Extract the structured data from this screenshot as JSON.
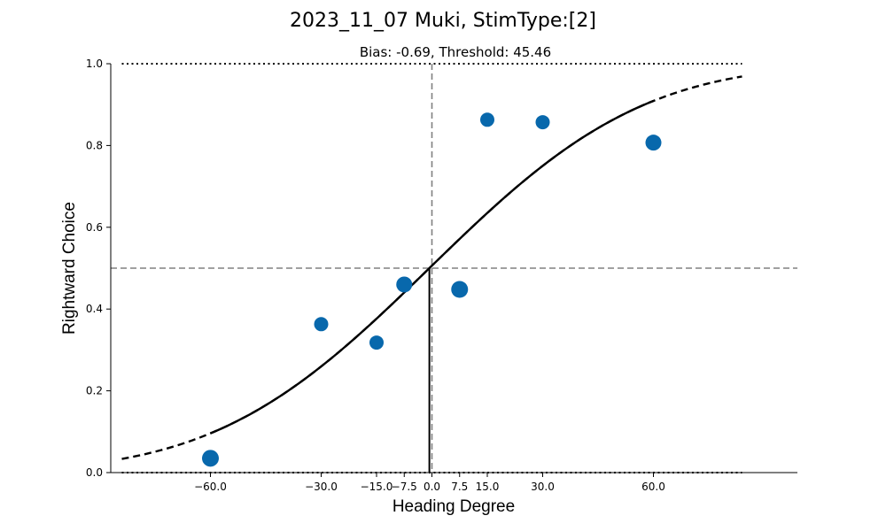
{
  "chart_data": {
    "type": "scatter",
    "title": "2023_11_07 Muki, StimType:[2]",
    "subtitle": "Bias: -0.69, Threshold: 45.46",
    "xlabel": "Heading Degree",
    "ylabel": "Rightward Choice",
    "xlim": [
      -87,
      99
    ],
    "ylim": [
      0,
      1
    ],
    "x_ticks": [
      -60.0,
      -30.0,
      -15.0,
      -7.5,
      0.0,
      7.5,
      15.0,
      30.0,
      60.0
    ],
    "x_tick_labels": [
      "−60.0",
      "−30.0",
      "−15.0",
      "−7.5",
      "0.0",
      "7.5",
      "15.0",
      "30.0",
      "60.0"
    ],
    "y_ticks": [
      0.0,
      0.2,
      0.4,
      0.6,
      0.8,
      1.0
    ],
    "y_tick_labels": [
      "0.0",
      "0.2",
      "0.4",
      "0.6",
      "0.8",
      "1.0"
    ],
    "points": {
      "x": [
        -60.0,
        -30.0,
        -15.0,
        -7.5,
        7.5,
        15.0,
        30.0,
        60.0
      ],
      "y": [
        0.035,
        0.363,
        0.318,
        0.46,
        0.448,
        0.863,
        0.857,
        0.807
      ],
      "color": "#0868ac"
    },
    "fit": {
      "model": "cumulative_gaussian",
      "mu": -0.69,
      "sigma": 45.46,
      "solid_range": [
        -60,
        60
      ],
      "dashed_range": [
        -84,
        84
      ],
      "color": "#000000"
    },
    "reference_lines": {
      "horizontal_dashed_y": 0.5,
      "vertical_dashed_x": 0.0,
      "dotted_y": [
        0.0,
        1.0
      ],
      "dotted_x_range": [
        -84,
        84
      ],
      "bias_line_x": -0.69,
      "color": "#808080"
    },
    "grid": false,
    "legend": "none"
  }
}
